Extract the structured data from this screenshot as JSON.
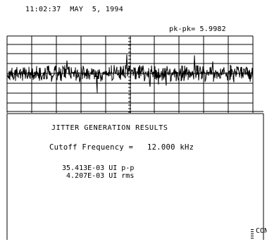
{
  "header": {
    "timestamp": "11:02:37  MAY  5, 1994"
  },
  "scope": {
    "pk_pk_readout": "pk-pk= 5.9982",
    "trace_color": "#000000",
    "grid_color": "#000000"
  },
  "results": {
    "title": "JITTER GENERATION RESULTS",
    "cutoff_label": "Cutoff Frequency =",
    "cutoff_value": "12.000 kHz",
    "pp_line": "35.413E-03 UI p-p",
    "rms_line": " 4.207E-03 UI rms"
  },
  "footer": {
    "softkey_label": "CON"
  }
}
